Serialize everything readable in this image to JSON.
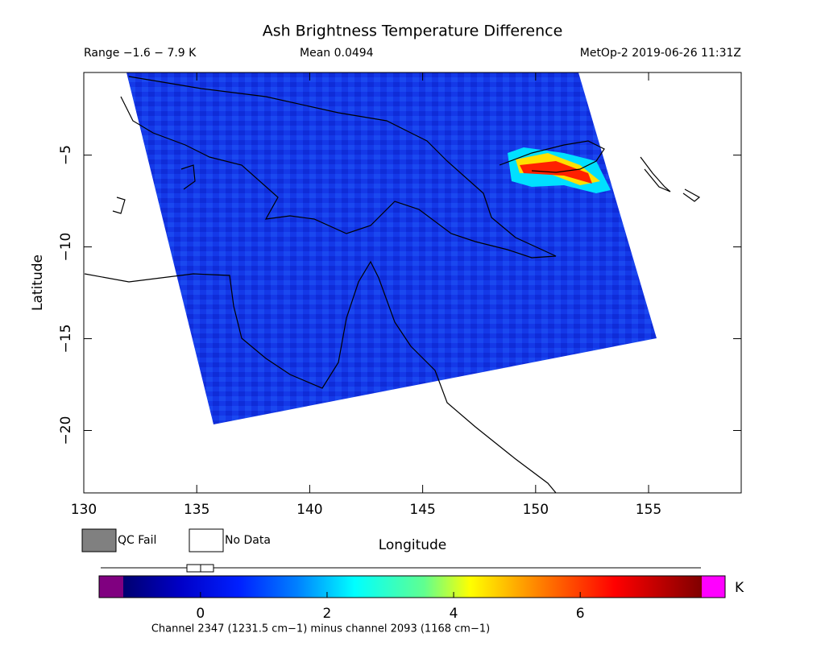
{
  "chart_data": {
    "type": "map",
    "title": "Ash Brightness Temperature Difference",
    "range_label": "Range −1.6 − 7.9 K",
    "mean_label": "Mean 0.0494",
    "source_label": "MetOp-2 2019-06-26 11:31Z",
    "xlabel": "Longitude",
    "ylabel": "Latitude",
    "xlim": [
      130,
      159.1
    ],
    "ylim": [
      -23.4,
      -0.5
    ],
    "xticks": [
      130,
      135,
      140,
      145,
      150,
      155
    ],
    "yticks": [
      {
        "value": -5,
        "label": "−5"
      },
      {
        "value": -10,
        "label": "−10"
      },
      {
        "value": -15,
        "label": "−15"
      },
      {
        "value": -20,
        "label": "−20"
      }
    ],
    "legend": [
      {
        "name": "QC Fail",
        "color": "#808080"
      },
      {
        "name": "No Data",
        "color": "#ffffff"
      }
    ],
    "colorbar": {
      "lim": [
        -1.22,
        7.92
      ],
      "ticks": [
        0,
        2,
        4,
        6
      ],
      "unit": "K",
      "under_color": "#800080",
      "over_color": "#ff00ff",
      "caption": "Channel 2347 (1231.5 cm−1) minus channel 2093 (1168 cm−1)"
    }
  }
}
